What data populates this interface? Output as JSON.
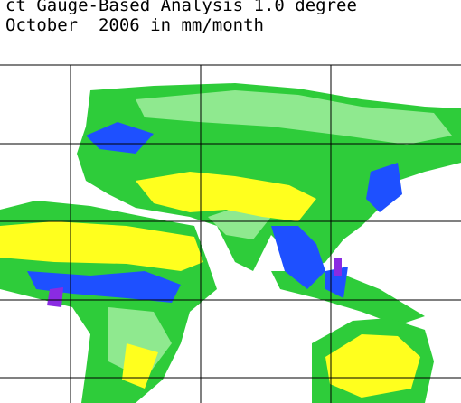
{
  "header": {
    "title_line_1": "ct Gauge-Based Analysis 1.0 degree",
    "title_line_2": "October  2006 in mm/month"
  }
}
